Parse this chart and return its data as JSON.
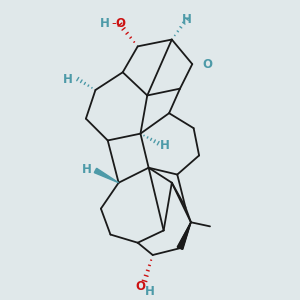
{
  "bg_color": "#e0e8ea",
  "bond_color": "#1a1a1a",
  "heteroatom_color": "#4d9aa8",
  "oxygen_color": "#cc1111",
  "fig_width": 3.0,
  "fig_height": 3.0,
  "dpi": 100,
  "xlim": [
    0,
    10
  ],
  "ylim": [
    0,
    11
  ]
}
